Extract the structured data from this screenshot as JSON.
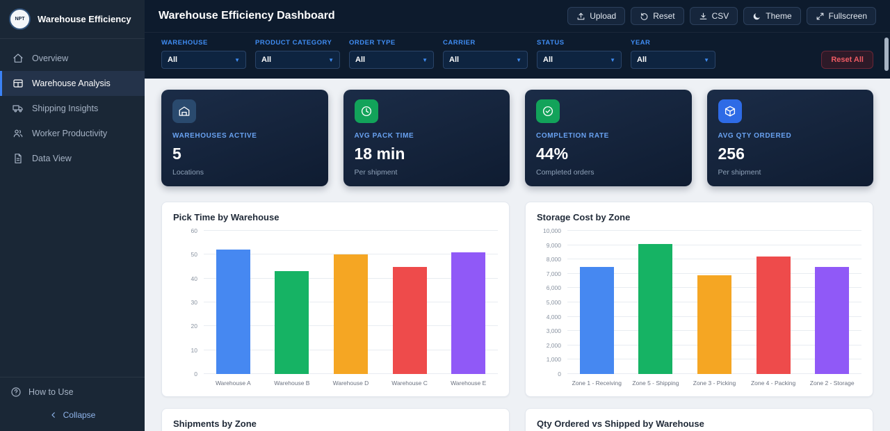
{
  "sidebar": {
    "logo_text": "NPT",
    "brand": "Warehouse Efficiency",
    "items": [
      {
        "label": "Overview",
        "icon": "home-icon",
        "active": false
      },
      {
        "label": "Warehouse Analysis",
        "icon": "table-icon",
        "active": true
      },
      {
        "label": "Shipping Insights",
        "icon": "truck-icon",
        "active": false
      },
      {
        "label": "Worker Productivity",
        "icon": "users-icon",
        "active": false
      },
      {
        "label": "Data View",
        "icon": "file-icon",
        "active": false
      }
    ],
    "footer": {
      "help_label": "How to Use",
      "collapse_label": "Collapse"
    }
  },
  "header": {
    "title": "Warehouse Efficiency Dashboard",
    "buttons": [
      {
        "label": "Upload",
        "icon": "upload-icon"
      },
      {
        "label": "Reset",
        "icon": "reset-icon"
      },
      {
        "label": "CSV",
        "icon": "download-icon"
      },
      {
        "label": "Theme",
        "icon": "moon-icon"
      },
      {
        "label": "Fullscreen",
        "icon": "fullscreen-icon"
      }
    ]
  },
  "filters": {
    "fields": [
      {
        "label": "WAREHOUSE",
        "value": "All"
      },
      {
        "label": "PRODUCT CATEGORY",
        "value": "All"
      },
      {
        "label": "ORDER TYPE",
        "value": "All"
      },
      {
        "label": "CARRIER",
        "value": "All"
      },
      {
        "label": "STATUS",
        "value": "All"
      },
      {
        "label": "YEAR",
        "value": "All"
      }
    ],
    "reset_all_label": "Reset All"
  },
  "kpis": [
    {
      "icon": "warehouse-icon",
      "icon_bg": "#2a4a6e",
      "label": "WAREHOUSES ACTIVE",
      "value": "5",
      "sub": "Locations"
    },
    {
      "icon": "clock-icon",
      "icon_bg": "#12a35a",
      "label": "AVG PACK TIME",
      "value": "18 min",
      "sub": "Per shipment"
    },
    {
      "icon": "check-circle-icon",
      "icon_bg": "#12a35a",
      "label": "COMPLETION RATE",
      "value": "44%",
      "sub": "Completed orders"
    },
    {
      "icon": "box-icon",
      "icon_bg": "#2e6be6",
      "label": "AVG QTY ORDERED",
      "value": "256",
      "sub": "Per shipment"
    }
  ],
  "chart_data": [
    {
      "type": "bar",
      "title": "Pick Time by Warehouse",
      "categories": [
        "Warehouse A",
        "Warehouse B",
        "Warehouse D",
        "Warehouse C",
        "Warehouse E"
      ],
      "values": [
        52,
        43,
        50,
        45,
        51
      ],
      "colors": [
        "#4688f1",
        "#16b364",
        "#f5a623",
        "#ee4b4b",
        "#9059f7"
      ],
      "xlabel": "",
      "ylabel": "",
      "ylim": [
        0,
        60
      ],
      "ytick_step": 10,
      "grid": true,
      "legend": "none"
    },
    {
      "type": "bar",
      "title": "Storage Cost by Zone",
      "categories": [
        "Zone 1 - Receiving",
        "Zone 5 - Shipping",
        "Zone 3 - Picking",
        "Zone 4 - Packing",
        "Zone 2 - Storage"
      ],
      "values": [
        7500,
        9100,
        6900,
        8200,
        7500
      ],
      "colors": [
        "#4688f1",
        "#16b364",
        "#f5a623",
        "#ee4b4b",
        "#9059f7"
      ],
      "xlabel": "",
      "ylabel": "",
      "ylim": [
        0,
        10000
      ],
      "ytick_step": 1000,
      "grid": true,
      "legend": "none"
    },
    {
      "title": "Shipments by Zone"
    },
    {
      "title": "Qty Ordered vs Shipped by Warehouse"
    }
  ]
}
